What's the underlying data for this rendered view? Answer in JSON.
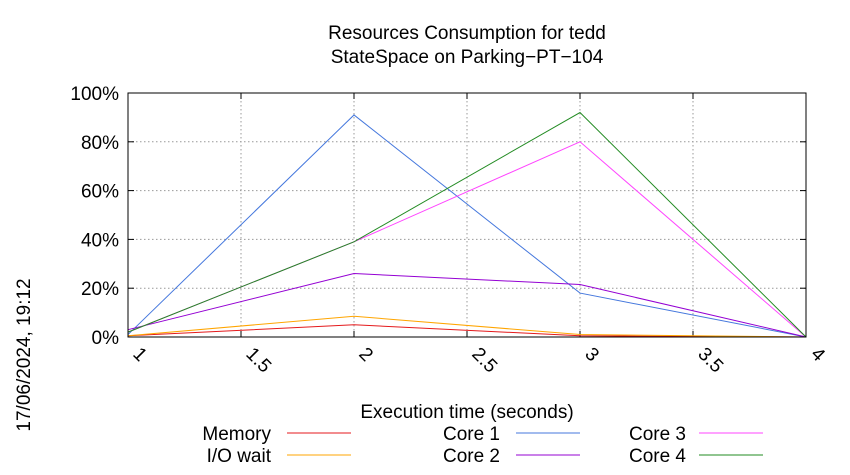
{
  "chart_data": {
    "type": "line",
    "title_line1": "Resources Consumption for tedd",
    "title_line2": "StateSpace on Parking−PT−104",
    "xlabel": "Execution time (seconds)",
    "ylabel": "",
    "side_label": "17/06/2024, 19:12",
    "xlim": [
      1,
      4
    ],
    "ylim": [
      0,
      100
    ],
    "xticks": [
      1,
      1.5,
      2,
      2.5,
      3,
      3.5,
      4
    ],
    "xtick_labels": [
      "1",
      "1.5",
      "2",
      "2.5",
      "3",
      "3.5",
      "4"
    ],
    "yticks": [
      0,
      20,
      40,
      60,
      80,
      100
    ],
    "ytick_labels": [
      "0%",
      "20%",
      "40%",
      "60%",
      "80%",
      "100%"
    ],
    "grid": true,
    "legend_position": "bottom",
    "x": [
      1,
      2,
      3,
      4
    ],
    "series": [
      {
        "name": "Memory",
        "color": "#e41a1c",
        "values": [
          0.5,
          5,
          0.5,
          0
        ]
      },
      {
        "name": "I/O wait",
        "color": "#ffa500",
        "values": [
          0.5,
          8.5,
          1,
          0
        ]
      },
      {
        "name": "Core 1",
        "color": "#4477dd",
        "values": [
          1,
          91,
          18,
          0
        ]
      },
      {
        "name": "Core 2",
        "color": "#9400d3",
        "values": [
          3,
          26,
          21.5,
          0
        ]
      },
      {
        "name": "Core 3",
        "color": "#ff44ff",
        "values": [
          2,
          39,
          80,
          0
        ]
      },
      {
        "name": "Core 4",
        "color": "#228b22",
        "values": [
          2,
          39,
          92,
          0
        ]
      }
    ]
  }
}
